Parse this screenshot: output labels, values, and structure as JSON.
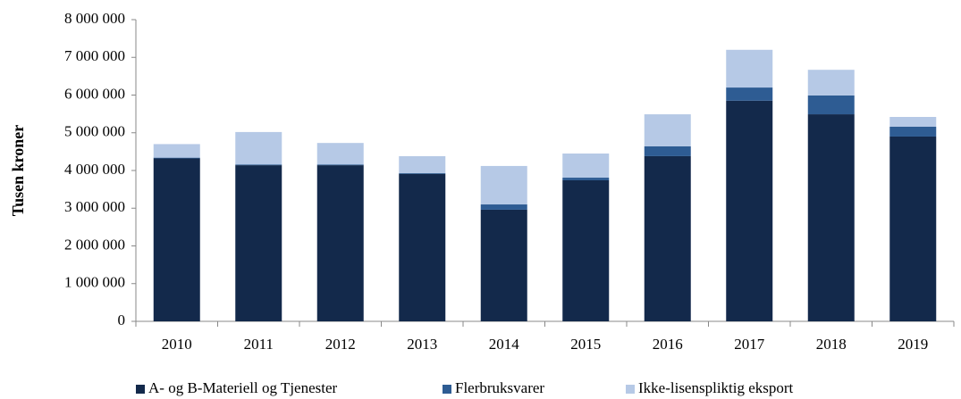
{
  "chart_data": {
    "type": "stacked_bar",
    "y_label": "Tusen kroner",
    "categories": [
      "2010",
      "2011",
      "2012",
      "2013",
      "2014",
      "2015",
      "2016",
      "2017",
      "2018",
      "2019"
    ],
    "series": [
      {
        "name": "A- og B-Materiell og Tjenester",
        "color": "#13294b",
        "values": [
          4320000,
          4140000,
          4140000,
          3910000,
          2960000,
          3740000,
          4380000,
          5850000,
          5490000,
          4900000
        ]
      },
      {
        "name": "Flerbruksvarer",
        "color": "#2e5c93",
        "values": [
          20000,
          20000,
          20000,
          20000,
          140000,
          70000,
          260000,
          350000,
          500000,
          260000
        ]
      },
      {
        "name": "Ikke-lisenspliktig eksport",
        "color": "#b6c9e6",
        "values": [
          360000,
          860000,
          570000,
          450000,
          1020000,
          640000,
          850000,
          1000000,
          680000,
          260000
        ]
      }
    ],
    "ylim": [
      0,
      8000000
    ],
    "yticks": [
      0,
      {
        "value": 1000000,
        "label": "1 000 000"
      },
      {
        "value": 2000000,
        "label": "2 000 000"
      },
      {
        "value": 3000000,
        "label": "3 000 000"
      },
      {
        "value": 4000000,
        "label": "4 000 000"
      },
      {
        "value": 5000000,
        "label": "5 000 000"
      },
      {
        "value": 6000000,
        "label": "6 000 000"
      },
      {
        "value": 7000000,
        "label": "7 000 000"
      },
      {
        "value": 8000000,
        "label": "8 000 000"
      }
    ],
    "grid": false,
    "legend": "bottom"
  }
}
